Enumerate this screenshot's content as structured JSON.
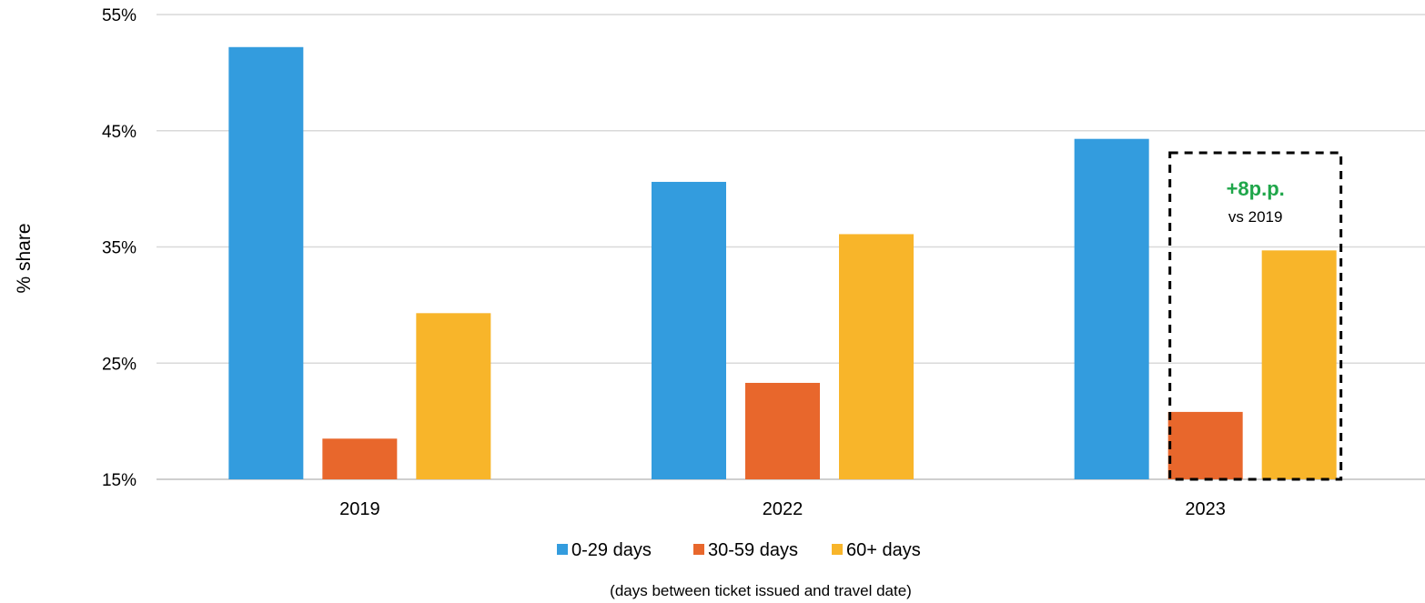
{
  "chart_data": {
    "type": "bar",
    "categories": [
      "2019",
      "2022",
      "2023"
    ],
    "series": [
      {
        "name": "0-29 days",
        "color": "#339CDE",
        "values": [
          52.2,
          40.6,
          44.3
        ]
      },
      {
        "name": "30-59 days",
        "color": "#E8672C",
        "values": [
          18.5,
          23.3,
          20.8
        ]
      },
      {
        "name": "60+ days",
        "color": "#F8B52A",
        "values": [
          29.3,
          36.1,
          34.7
        ]
      }
    ],
    "title": "",
    "xlabel": "",
    "ylabel": "% share",
    "ylim": [
      15,
      55
    ],
    "yticks": [
      "15%",
      "25%",
      "35%",
      "45%",
      "55%"
    ],
    "grid": true,
    "legend_position": "bottom",
    "footnote": "(days between ticket issued and travel date)",
    "annotation": {
      "headline": "+8p.p.",
      "subtext": "vs 2019",
      "headline_color": "#1FA64A",
      "category": "2023"
    }
  }
}
